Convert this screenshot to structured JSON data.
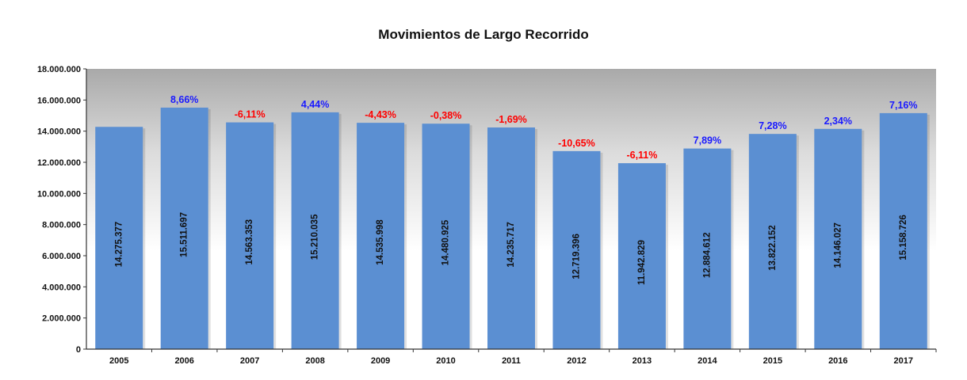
{
  "colors": {
    "bar": "#5b8fd2",
    "positive": "#1a1aff",
    "negative": "#ff0000",
    "axis": "#333333"
  },
  "chart_data": {
    "type": "bar",
    "title": "Movimientos de Largo Recorrido",
    "xlabel": "",
    "ylabel": "",
    "ylim": [
      0,
      18000000
    ],
    "grid": false,
    "categories": [
      "2005",
      "2006",
      "2007",
      "2008",
      "2009",
      "2010",
      "2011",
      "2012",
      "2013",
      "2014",
      "2015",
      "2016",
      "2017"
    ],
    "values": [
      14275377,
      15511697,
      14563353,
      15210035,
      14535998,
      14480925,
      14235717,
      12719396,
      11942829,
      12884612,
      13822152,
      14146027,
      15158726
    ],
    "value_labels": [
      "14.275.377",
      "15.511.697",
      "14.563.353",
      "15.210.035",
      "14.535.998",
      "14.480.925",
      "14.235.717",
      "12.719.396",
      "11.942.829",
      "12.884.612",
      "13.822.152",
      "14.146.027",
      "15.158.726"
    ],
    "change_labels": [
      "",
      "8,66%",
      "-6,11%",
      "4,44%",
      "-4,43%",
      "-0,38%",
      "-1,69%",
      "-10,65%",
      "-6,11%",
      "7,89%",
      "7,28%",
      "2,34%",
      "7,16%"
    ],
    "y_ticks": [
      0,
      2000000,
      4000000,
      6000000,
      8000000,
      10000000,
      12000000,
      14000000,
      16000000,
      18000000
    ],
    "y_tick_labels": [
      "0",
      "2.000.000",
      "4.000.000",
      "6.000.000",
      "8.000.000",
      "10.000.000",
      "12.000.000",
      "14.000.000",
      "16.000.000",
      "18.000.000"
    ]
  }
}
